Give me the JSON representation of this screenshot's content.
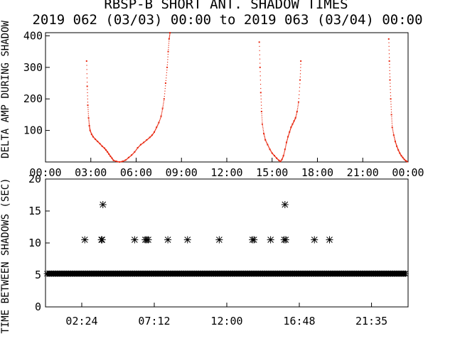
{
  "chart_data": [
    {
      "type": "scatter",
      "title": "RBSP-B SHORT ANT. SHADOW TIMES",
      "subtitle": "2019 062 (03/03) 00:00 to 2019 063 (03/04) 00:00",
      "ylabel": "DELTA AMP DURING SHADOW",
      "xlim": [
        0,
        24
      ],
      "ylim": [
        0,
        410
      ],
      "yticks": [
        100,
        200,
        300,
        400
      ],
      "xticklabels": [
        "00:00",
        "03:00",
        "06:00",
        "09:00",
        "12:00",
        "15:00",
        "18:00",
        "21:00",
        "00:00"
      ],
      "xtickvalues": [
        0,
        3,
        6,
        9,
        12,
        15,
        18,
        21,
        24
      ],
      "color": "#e8270f",
      "series": [
        {
          "x": [
            2.72,
            2.76,
            2.8,
            2.85,
            2.9,
            2.95,
            3.05,
            3.15,
            3.3,
            3.45,
            3.6,
            3.75,
            3.9,
            4.0,
            4.1,
            4.2,
            4.3,
            4.4,
            4.5,
            4.7,
            4.9,
            5.1,
            5.3,
            5.5,
            5.7,
            5.9,
            6.1,
            6.3,
            6.5,
            6.7,
            6.9,
            7.05,
            7.2,
            7.35,
            7.5,
            7.65,
            7.75,
            7.85,
            7.95,
            8.05,
            8.12,
            8.18,
            8.24
          ],
          "y": [
            320,
            240,
            180,
            140,
            115,
            100,
            88,
            80,
            72,
            65,
            58,
            50,
            44,
            38,
            32,
            25,
            18,
            12,
            5,
            2,
            0,
            2,
            6,
            14,
            22,
            32,
            45,
            55,
            62,
            70,
            78,
            85,
            95,
            110,
            125,
            145,
            170,
            200,
            250,
            300,
            350,
            390,
            410
          ]
        },
        {
          "x": [
            14.15,
            14.2,
            14.25,
            14.3,
            14.35,
            14.45,
            14.55,
            14.7,
            14.85,
            15.0,
            15.15,
            15.3,
            15.45,
            15.55,
            15.65,
            15.75,
            15.85,
            15.95,
            16.05,
            16.15,
            16.25,
            16.35,
            16.45,
            16.55,
            16.65,
            16.75,
            16.85,
            16.9
          ],
          "y": [
            380,
            300,
            220,
            160,
            120,
            90,
            70,
            55,
            40,
            28,
            20,
            12,
            5,
            2,
            8,
            20,
            40,
            62,
            80,
            95,
            110,
            120,
            130,
            140,
            160,
            190,
            260,
            320
          ]
        },
        {
          "x": [
            22.72,
            22.76,
            22.8,
            22.85,
            22.9,
            22.95,
            23.05,
            23.15,
            23.25,
            23.35,
            23.45,
            23.55,
            23.65,
            23.75,
            23.85,
            23.95
          ],
          "y": [
            390,
            320,
            260,
            200,
            150,
            110,
            85,
            65,
            50,
            38,
            28,
            20,
            14,
            8,
            4,
            1
          ]
        }
      ]
    },
    {
      "type": "scatter",
      "ylabel": "TIME BETWEEN SHADOWS (SEC)",
      "xlim": [
        0,
        24
      ],
      "ylim": [
        0,
        20
      ],
      "yticks": [
        0,
        5,
        10,
        15,
        20
      ],
      "xticklabels": [
        "02:24",
        "07:12",
        "12:00",
        "16:48",
        "21:35"
      ],
      "xtickvalues": [
        2.4,
        7.2,
        12.0,
        16.8,
        21.58
      ],
      "color": "#000000",
      "baseline": {
        "y": 5.2,
        "from": 0.1,
        "to": 23.9
      },
      "points": [
        {
          "x": 2.6,
          "y": 10.5
        },
        {
          "x": 3.7,
          "y": 10.5
        },
        {
          "x": 3.75,
          "y": 10.5
        },
        {
          "x": 3.8,
          "y": 16
        },
        {
          "x": 5.9,
          "y": 10.5
        },
        {
          "x": 6.6,
          "y": 10.5
        },
        {
          "x": 6.7,
          "y": 10.5
        },
        {
          "x": 6.8,
          "y": 10.5
        },
        {
          "x": 8.1,
          "y": 10.5
        },
        {
          "x": 9.4,
          "y": 10.5
        },
        {
          "x": 11.5,
          "y": 10.5
        },
        {
          "x": 13.7,
          "y": 10.5
        },
        {
          "x": 13.8,
          "y": 10.5
        },
        {
          "x": 14.9,
          "y": 10.5
        },
        {
          "x": 15.8,
          "y": 10.5
        },
        {
          "x": 15.9,
          "y": 10.5
        },
        {
          "x": 15.85,
          "y": 16
        },
        {
          "x": 17.8,
          "y": 10.5
        },
        {
          "x": 18.8,
          "y": 10.5
        }
      ]
    }
  ]
}
